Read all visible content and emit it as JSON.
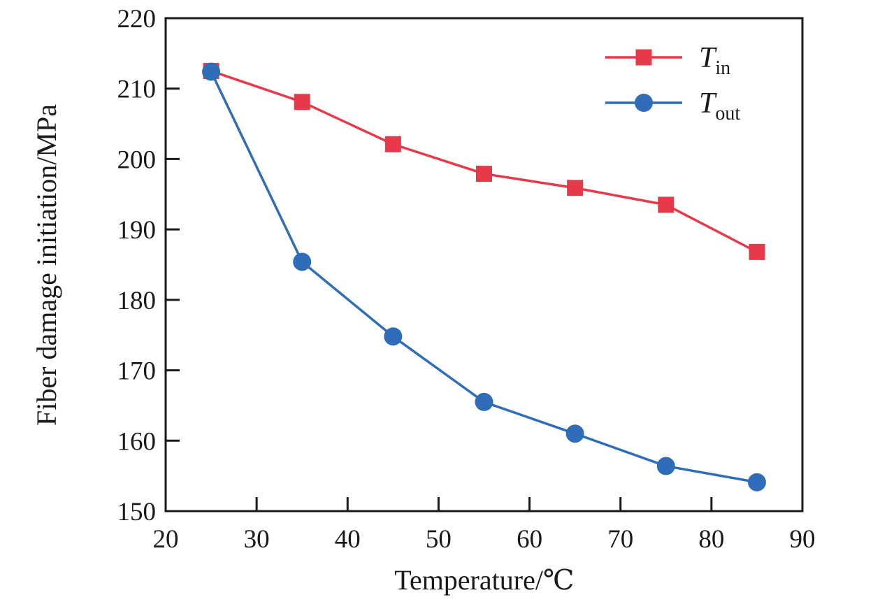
{
  "chart_data": {
    "type": "line",
    "title": "",
    "xlabel": "Temperature/℃",
    "ylabel": "Fiber damage initiation/MPa",
    "xlim": [
      20,
      90
    ],
    "ylim": [
      150,
      220
    ],
    "xticks": [
      20,
      30,
      40,
      50,
      60,
      70,
      80,
      90
    ],
    "yticks": [
      150,
      160,
      170,
      180,
      190,
      200,
      210,
      220
    ],
    "grid": false,
    "legend_position": "upper-right-inside",
    "axis_color": "#1a1a1a",
    "x": [
      25,
      35,
      45,
      55,
      65,
      75,
      85
    ],
    "series": [
      {
        "name": "T_in",
        "label_main": "T",
        "label_sub": "in",
        "marker": "square",
        "color": "#e8394a",
        "values": [
          212.5,
          208.1,
          202.1,
          197.9,
          195.9,
          193.5,
          186.8
        ]
      },
      {
        "name": "T_out",
        "label_main": "T",
        "label_sub": "out",
        "marker": "circle",
        "color": "#2f6db8",
        "values": [
          212.4,
          185.4,
          174.8,
          165.5,
          161.0,
          156.4,
          154.1
        ]
      }
    ]
  }
}
